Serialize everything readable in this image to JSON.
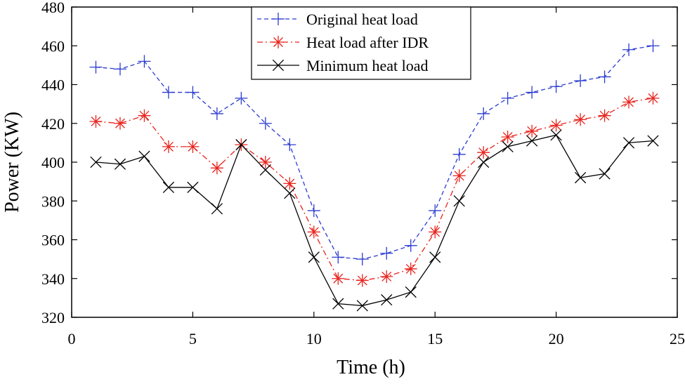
{
  "chart_data": {
    "type": "line",
    "title": "",
    "xlabel": "Time (h)",
    "ylabel": "Power (KW)",
    "xlim": [
      0,
      25
    ],
    "ylim": [
      320,
      480
    ],
    "xticks": [
      0,
      5,
      10,
      15,
      20,
      25
    ],
    "yticks": [
      320,
      340,
      360,
      380,
      400,
      420,
      440,
      460,
      480
    ],
    "grid": false,
    "legend_position": "top-center",
    "x": [
      1,
      2,
      3,
      4,
      5,
      6,
      7,
      8,
      9,
      10,
      11,
      12,
      13,
      14,
      15,
      16,
      17,
      18,
      19,
      20,
      21,
      22,
      23,
      24
    ],
    "series": [
      {
        "name": "Original heat load",
        "color": "#2b3bd1",
        "dash": "dashed",
        "marker": "plus",
        "values": [
          449,
          448,
          452,
          436,
          436,
          425,
          433,
          420,
          409,
          375,
          351,
          350,
          353,
          357,
          375,
          404,
          425,
          433,
          436,
          439,
          442,
          444,
          458,
          460
        ]
      },
      {
        "name": "Heat load after IDR",
        "color": "#e8231d",
        "dash": "dashdot",
        "marker": "asterisk",
        "values": [
          421,
          420,
          424,
          408,
          408,
          397,
          409,
          400,
          389,
          364,
          340,
          339,
          341,
          345,
          364,
          393,
          405,
          413,
          416,
          419,
          422,
          424,
          431,
          433
        ]
      },
      {
        "name": "Minimum heat load",
        "color": "#000000",
        "dash": "solid",
        "marker": "x",
        "values": [
          400,
          399,
          403,
          387,
          387,
          376,
          409,
          396,
          384,
          351,
          327,
          326,
          329,
          333,
          351,
          380,
          400,
          408,
          411,
          414,
          392,
          394,
          410,
          411
        ]
      }
    ]
  }
}
